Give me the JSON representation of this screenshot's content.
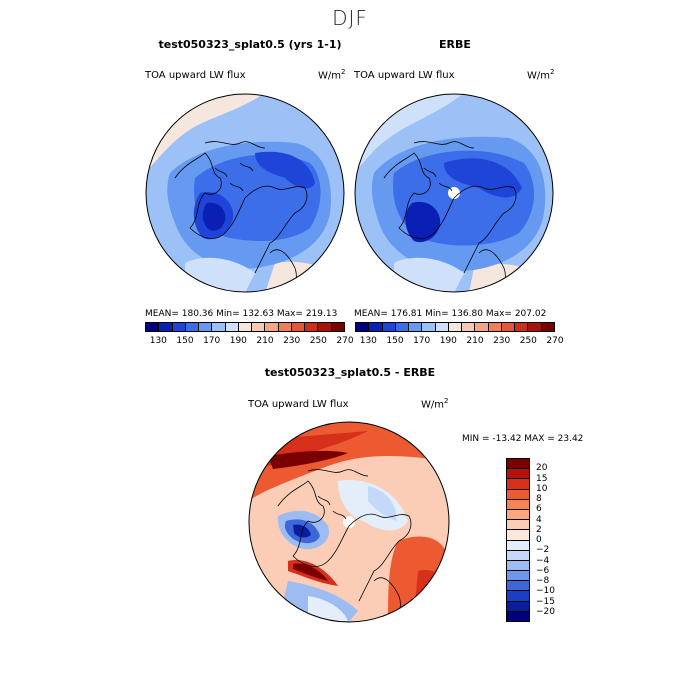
{
  "season": "DJF",
  "panels": [
    {
      "title": "test050323_splat0.5 (yrs 1-1)",
      "field_label": "TOA upward LW flux",
      "unit": "W/m",
      "unit_sup": "2",
      "stats_text": "MEAN= 180.36   Min= 132.63   Max= 219.13"
    },
    {
      "title": "ERBE",
      "field_label": "TOA upward LW flux",
      "unit": "W/m",
      "unit_sup": "2",
      "stats_text": "MEAN= 176.81   Min= 136.80   Max= 207.02"
    }
  ],
  "diff_panel": {
    "title": "test050323_splat0.5 - ERBE",
    "field_label": "TOA upward LW flux",
    "unit": "W/m",
    "unit_sup": "2",
    "stats_text": "MIN = -13.42  MAX =  23.42"
  },
  "chart_data": [
    {
      "type": "heatmap",
      "title": "test050323_splat0.5 (yrs 1-1)",
      "projection": "north polar stereographic",
      "colorbar": {
        "orientation": "horizontal",
        "ticks": [
          "130",
          "150",
          "170",
          "190",
          "210",
          "230",
          "250",
          "270"
        ],
        "colors": [
          "#00007f",
          "#0a1fb4",
          "#1f45d8",
          "#3b6ee8",
          "#6699f0",
          "#9cc1f6",
          "#cfe0fb",
          "#f6e7de",
          "#f8c9b2",
          "#f5a584",
          "#ee7f5a",
          "#e35636",
          "#cd2e1a",
          "#a8120c",
          "#7a0000"
        ]
      },
      "stats": {
        "mean": 180.36,
        "min": 132.63,
        "max": 219.13
      }
    },
    {
      "type": "heatmap",
      "title": "ERBE",
      "projection": "north polar stereographic",
      "colorbar": {
        "orientation": "horizontal",
        "ticks": [
          "130",
          "150",
          "170",
          "190",
          "210",
          "230",
          "250",
          "270"
        ],
        "colors": [
          "#00007f",
          "#0a1fb4",
          "#1f45d8",
          "#3b6ee8",
          "#6699f0",
          "#9cc1f6",
          "#cfe0fb",
          "#f6e7de",
          "#f8c9b2",
          "#f5a584",
          "#ee7f5a",
          "#e35636",
          "#cd2e1a",
          "#a8120c",
          "#7a0000"
        ]
      },
      "stats": {
        "mean": 176.81,
        "min": 136.8,
        "max": 207.02
      }
    },
    {
      "type": "heatmap",
      "title": "test050323_splat0.5 - ERBE",
      "projection": "north polar stereographic",
      "colorbar": {
        "orientation": "vertical",
        "ticks": [
          "20",
          "15",
          "10",
          "8",
          "6",
          "4",
          "2",
          "0",
          "−2",
          "−4",
          "−6",
          "−8",
          "−10",
          "−15",
          "−20"
        ],
        "colors": [
          "#7a0000",
          "#b3130c",
          "#d7301a",
          "#ec5a32",
          "#f58456",
          "#f9a883",
          "#fbcdb6",
          "#fde9dc",
          "#e4eefb",
          "#c4d8f7",
          "#9dbdf2",
          "#6e98ea",
          "#3d68dc",
          "#1a3ec4",
          "#0a1e9c",
          "#00007a"
        ]
      },
      "stats": {
        "min": -13.42,
        "max": 23.42
      }
    }
  ]
}
